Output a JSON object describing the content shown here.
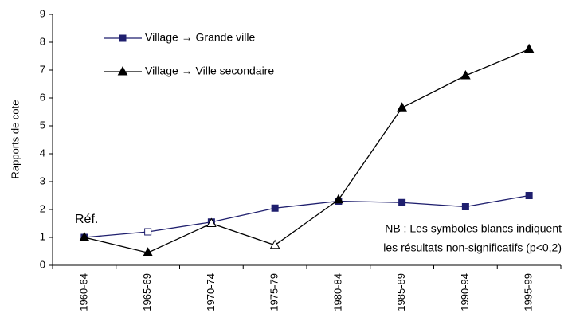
{
  "chart_data": {
    "type": "line",
    "y_label": "Rapports de cote",
    "categories": [
      "1960-64",
      "1965-69",
      "1970-74",
      "1975-79",
      "1980-84",
      "1985-89",
      "1990-94",
      "1995-99"
    ],
    "series": [
      {
        "name": "Village → Grande ville",
        "color": "#1f1f6e",
        "marker": "square",
        "values": [
          1,
          1.2,
          1.55,
          2.05,
          2.3,
          2.25,
          2.1,
          2.5
        ],
        "open_markers": [
          false,
          true,
          false,
          false,
          false,
          false,
          false,
          false
        ]
      },
      {
        "name": "Village → Ville secondaire",
        "color": "#000000",
        "marker": "triangle",
        "values": [
          1,
          0.45,
          1.5,
          0.72,
          2.35,
          5.65,
          6.8,
          7.75
        ],
        "open_markers": [
          false,
          false,
          true,
          true,
          false,
          false,
          false,
          false
        ]
      }
    ],
    "ylim": [
      0,
      9
    ],
    "yticks": [
      0,
      1,
      2,
      3,
      4,
      5,
      6,
      7,
      8,
      9
    ],
    "grid": false,
    "annotations": [
      "Réf.",
      "NB : Les symboles blancs indiquent",
      "les résultats non-significatifs (p<0,2)"
    ]
  }
}
